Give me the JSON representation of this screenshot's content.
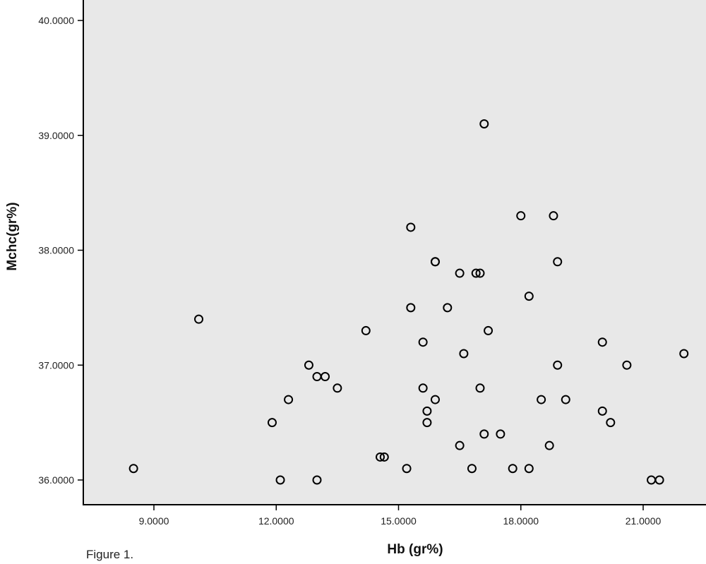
{
  "chart_data": {
    "type": "scatter",
    "title": "",
    "xlabel": "Hb (gr%)",
    "ylabel": "Mchc(gr%)",
    "xlim": [
      7.8,
      22.3
    ],
    "ylim": [
      35.8,
      40.2
    ],
    "x_ticks": [
      9,
      12,
      15,
      18,
      21
    ],
    "x_tick_labels": [
      "9.0000",
      "12.0000",
      "15.0000",
      "18.0000",
      "21.0000"
    ],
    "y_ticks": [
      36,
      37,
      38,
      39,
      40
    ],
    "y_tick_labels": [
      "36.0000",
      "37.0000",
      "38.0000",
      "39.0000",
      "40.0000"
    ],
    "grid": false,
    "colors": {
      "plot_background": "#e8e8e8",
      "marker": "#000000",
      "axis": "#000000"
    },
    "marker": "open-circle",
    "series": [
      {
        "points": [
          [
            8.5,
            36.1
          ],
          [
            10.1,
            37.4
          ],
          [
            11.9,
            36.5
          ],
          [
            12.1,
            36.0
          ],
          [
            12.3,
            36.7
          ],
          [
            12.8,
            37.0
          ],
          [
            13.0,
            36.9
          ],
          [
            13.2,
            36.9
          ],
          [
            13.0,
            36.0
          ],
          [
            13.5,
            36.8
          ],
          [
            14.2,
            37.3
          ],
          [
            14.55,
            36.2
          ],
          [
            14.65,
            36.2
          ],
          [
            15.2,
            36.1
          ],
          [
            15.3,
            38.2
          ],
          [
            15.3,
            37.5
          ],
          [
            15.6,
            37.2
          ],
          [
            15.6,
            36.8
          ],
          [
            15.7,
            36.6
          ],
          [
            15.7,
            36.5
          ],
          [
            15.9,
            37.9
          ],
          [
            15.9,
            37.9
          ],
          [
            15.9,
            36.7
          ],
          [
            16.2,
            37.5
          ],
          [
            16.5,
            37.8
          ],
          [
            16.5,
            36.3
          ],
          [
            16.6,
            37.1
          ],
          [
            16.8,
            36.1
          ],
          [
            16.9,
            37.8
          ],
          [
            17.0,
            37.8
          ],
          [
            17.0,
            36.8
          ],
          [
            17.1,
            39.1
          ],
          [
            17.1,
            36.4
          ],
          [
            17.2,
            37.3
          ],
          [
            17.5,
            36.4
          ],
          [
            17.8,
            36.1
          ],
          [
            18.0,
            38.3
          ],
          [
            18.2,
            37.6
          ],
          [
            18.2,
            36.1
          ],
          [
            18.5,
            36.7
          ],
          [
            18.7,
            36.3
          ],
          [
            18.8,
            38.3
          ],
          [
            18.9,
            37.9
          ],
          [
            18.9,
            37.0
          ],
          [
            19.1,
            36.7
          ],
          [
            20.0,
            37.2
          ],
          [
            20.0,
            36.6
          ],
          [
            20.2,
            36.5
          ],
          [
            20.6,
            37.0
          ],
          [
            21.2,
            36.0
          ],
          [
            21.4,
            36.0
          ],
          [
            22.0,
            37.1
          ]
        ]
      }
    ]
  },
  "caption": "Figure 1."
}
